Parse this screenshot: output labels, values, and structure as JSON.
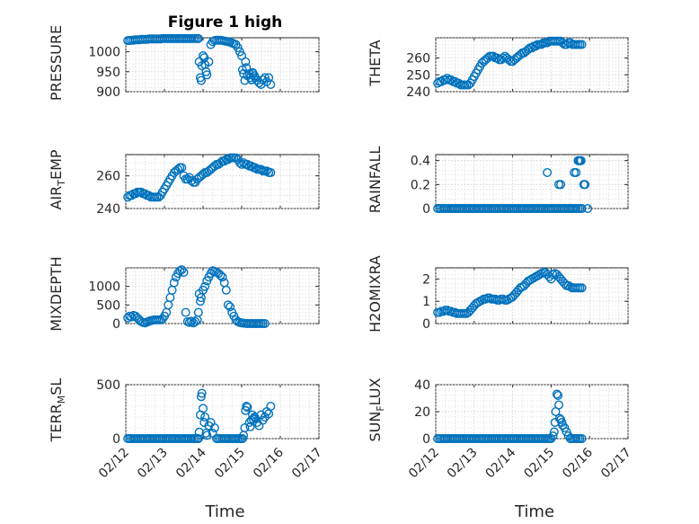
{
  "figure": {
    "title": "Figure 1 high",
    "marker_color": "#0072BD"
  },
  "chart_data": [
    {
      "type": "scatter",
      "id": "pressure",
      "ylabel": "PRESSURE",
      "xlabel": "",
      "xlim": [
        0,
        5
      ],
      "ylim": [
        900,
        1035
      ],
      "yticks": [
        900,
        950,
        1000
      ],
      "grid": true,
      "show_xticklabels": false,
      "title": "Figure 1 high",
      "x": [
        0.05,
        0.1,
        0.15,
        0.2,
        0.25,
        0.3,
        0.35,
        0.4,
        0.45,
        0.5,
        0.55,
        0.6,
        0.65,
        0.7,
        0.75,
        0.8,
        0.85,
        0.9,
        0.95,
        1.0,
        1.05,
        1.1,
        1.15,
        1.2,
        1.25,
        1.3,
        1.35,
        1.4,
        1.45,
        1.5,
        1.55,
        1.6,
        1.65,
        1.7,
        1.75,
        1.8,
        1.85,
        1.88,
        1.9,
        1.93,
        1.95,
        1.97,
        2.0,
        2.03,
        2.05,
        2.08,
        2.1,
        2.15,
        2.2,
        2.25,
        2.3,
        2.35,
        2.4,
        2.45,
        2.5,
        2.55,
        2.6,
        2.65,
        2.7,
        2.75,
        2.8,
        2.85,
        2.9,
        2.95,
        3.0,
        3.02,
        3.05,
        3.08,
        3.1,
        3.12,
        3.15,
        3.2,
        3.22,
        3.25,
        3.28,
        3.3,
        3.33,
        3.35,
        3.4,
        3.45,
        3.5,
        3.55,
        3.6,
        3.65,
        3.7,
        3.75
      ],
      "y": [
        1028,
        1028,
        1029,
        1029,
        1030,
        1030,
        1030,
        1031,
        1031,
        1031,
        1031,
        1032,
        1032,
        1032,
        1032,
        1032,
        1032,
        1032,
        1033,
        1033,
        1033,
        1033,
        1033,
        1033,
        1033,
        1033,
        1033,
        1033,
        1033,
        1033,
        1033,
        1033,
        1033,
        1033,
        1033,
        1033,
        1033,
        1033,
        975,
        935,
        928,
        965,
        990,
        985,
        968,
        950,
        942,
        975,
        1018,
        1025,
        1028,
        1029,
        1029,
        1029,
        1028,
        1027,
        1026,
        1025,
        1024,
        1022,
        1020,
        1018,
        1010,
        1000,
        990,
        955,
        945,
        928,
        975,
        960,
        940,
        945,
        935,
        930,
        948,
        945,
        940,
        935,
        928,
        922,
        918,
        930,
        935,
        925,
        935,
        918
      ]
    },
    {
      "type": "scatter",
      "id": "theta",
      "ylabel": "THETA",
      "xlabel": "",
      "xlim": [
        0,
        5
      ],
      "ylim": [
        240,
        272
      ],
      "yticks": [
        240,
        250,
        260
      ],
      "grid": true,
      "show_xticklabels": false,
      "x": [
        0.05,
        0.1,
        0.15,
        0.2,
        0.25,
        0.3,
        0.35,
        0.4,
        0.45,
        0.5,
        0.55,
        0.6,
        0.65,
        0.7,
        0.75,
        0.8,
        0.85,
        0.9,
        0.95,
        1.0,
        1.05,
        1.1,
        1.15,
        1.2,
        1.25,
        1.3,
        1.35,
        1.4,
        1.45,
        1.5,
        1.55,
        1.6,
        1.65,
        1.7,
        1.75,
        1.8,
        1.85,
        1.9,
        1.95,
        2.0,
        2.05,
        2.1,
        2.15,
        2.2,
        2.25,
        2.3,
        2.35,
        2.4,
        2.45,
        2.5,
        2.55,
        2.6,
        2.65,
        2.7,
        2.75,
        2.8,
        2.85,
        2.9,
        2.95,
        3.0,
        3.05,
        3.1,
        3.15,
        3.2,
        3.25,
        3.3,
        3.35,
        3.4,
        3.45,
        3.5,
        3.55,
        3.6,
        3.65,
        3.7,
        3.75,
        3.8
      ],
      "y": [
        245,
        246,
        246,
        247,
        247,
        248,
        247,
        247,
        246,
        246,
        245,
        245,
        244,
        244,
        244,
        244,
        244,
        245,
        247,
        249,
        251,
        253,
        255,
        257,
        258,
        259,
        260,
        261,
        261,
        261,
        260,
        260,
        259,
        259,
        260,
        261,
        260,
        259,
        258,
        258,
        259,
        260,
        261,
        262,
        263,
        263,
        264,
        265,
        266,
        266,
        267,
        267,
        268,
        268,
        268,
        269,
        269,
        269,
        270,
        270,
        270,
        270,
        270,
        270,
        270,
        269,
        268,
        268,
        269,
        269,
        268,
        268,
        268,
        268,
        268,
        268
      ]
    },
    {
      "type": "scatter",
      "id": "air_temp",
      "ylabel": "AIR_TEMP",
      "xlabel": "",
      "xlim": [
        0,
        5
      ],
      "ylim": [
        240,
        273
      ],
      "yticks": [
        240,
        260
      ],
      "grid": true,
      "show_xticklabels": false,
      "x": [
        0.05,
        0.1,
        0.15,
        0.2,
        0.25,
        0.3,
        0.35,
        0.4,
        0.45,
        0.5,
        0.55,
        0.6,
        0.65,
        0.7,
        0.75,
        0.8,
        0.85,
        0.9,
        0.95,
        1.0,
        1.05,
        1.1,
        1.15,
        1.2,
        1.25,
        1.3,
        1.35,
        1.4,
        1.45,
        1.5,
        1.55,
        1.6,
        1.65,
        1.7,
        1.75,
        1.8,
        1.85,
        1.9,
        1.95,
        2.0,
        2.05,
        2.1,
        2.15,
        2.2,
        2.25,
        2.3,
        2.35,
        2.4,
        2.45,
        2.5,
        2.55,
        2.6,
        2.65,
        2.7,
        2.75,
        2.8,
        2.85,
        2.9,
        2.95,
        3.0,
        3.05,
        3.1,
        3.15,
        3.2,
        3.25,
        3.3,
        3.35,
        3.4,
        3.45,
        3.5,
        3.55,
        3.6,
        3.65,
        3.7,
        3.75
      ],
      "y": [
        247,
        248,
        248,
        249,
        249,
        250,
        250,
        250,
        249,
        249,
        248,
        248,
        247,
        247,
        247,
        247,
        247,
        248,
        250,
        252,
        254,
        256,
        258,
        260,
        262,
        263,
        264,
        265,
        265,
        260,
        258,
        258,
        259,
        257,
        256,
        256,
        258,
        259,
        260,
        261,
        262,
        262,
        263,
        264,
        265,
        266,
        267,
        267,
        268,
        269,
        269,
        270,
        270,
        271,
        271,
        271,
        271,
        270,
        268,
        267,
        268,
        267,
        267,
        266,
        266,
        265,
        265,
        264,
        264,
        264,
        263,
        263,
        263,
        262,
        262
      ]
    },
    {
      "type": "scatter",
      "id": "rainfall",
      "ylabel": "RAINFALL",
      "xlabel": "",
      "xlim": [
        0,
        5
      ],
      "ylim": [
        0,
        0.45
      ],
      "yticks": [
        0,
        0.2,
        0.4
      ],
      "grid": true,
      "show_xticklabels": false,
      "x": [
        0.05,
        0.1,
        0.15,
        0.2,
        0.25,
        0.3,
        0.35,
        0.4,
        0.45,
        0.5,
        0.55,
        0.6,
        0.65,
        0.7,
        0.75,
        0.8,
        0.85,
        0.9,
        0.95,
        1.0,
        1.05,
        1.1,
        1.15,
        1.2,
        1.25,
        1.3,
        1.35,
        1.4,
        1.45,
        1.5,
        1.55,
        1.6,
        1.65,
        1.7,
        1.75,
        1.8,
        1.85,
        1.9,
        1.95,
        2.0,
        2.05,
        2.1,
        2.15,
        2.2,
        2.25,
        2.3,
        2.35,
        2.4,
        2.45,
        2.5,
        2.55,
        2.6,
        2.65,
        2.7,
        2.75,
        2.8,
        2.85,
        2.9,
        2.95,
        3.0,
        3.05,
        3.1,
        3.15,
        3.2,
        3.25,
        3.3,
        3.35,
        3.4,
        3.45,
        3.5,
        3.55,
        3.6,
        3.65,
        3.7,
        3.75,
        3.8,
        2.9,
        3.2,
        3.25,
        3.6,
        3.65,
        3.7,
        3.72,
        3.75,
        3.78,
        3.85,
        3.88,
        3.95
      ],
      "y": [
        0,
        0,
        0,
        0,
        0,
        0,
        0,
        0,
        0,
        0,
        0,
        0,
        0,
        0,
        0,
        0,
        0,
        0,
        0,
        0,
        0,
        0,
        0,
        0,
        0,
        0,
        0,
        0,
        0,
        0,
        0,
        0,
        0,
        0,
        0,
        0,
        0,
        0,
        0,
        0,
        0,
        0,
        0,
        0,
        0,
        0,
        0,
        0,
        0,
        0,
        0,
        0,
        0,
        0,
        0,
        0,
        0,
        0,
        0,
        0,
        0,
        0,
        0,
        0,
        0,
        0,
        0,
        0,
        0,
        0,
        0,
        0,
        0,
        0,
        0,
        0,
        0.3,
        0.2,
        0.2,
        0.3,
        0.3,
        0.4,
        0.4,
        0.4,
        0.4,
        0.2,
        0.2,
        0
      ]
    },
    {
      "type": "scatter",
      "id": "mixdepth",
      "ylabel": "MIXDEPTH",
      "xlabel": "",
      "xlim": [
        0,
        5
      ],
      "ylim": [
        0,
        1500
      ],
      "yticks": [
        0,
        500,
        1000
      ],
      "grid": true,
      "show_xticklabels": false,
      "x": [
        0.05,
        0.1,
        0.15,
        0.2,
        0.25,
        0.3,
        0.35,
        0.4,
        0.45,
        0.5,
        0.55,
        0.6,
        0.65,
        0.7,
        0.75,
        0.8,
        0.85,
        0.9,
        0.95,
        1.0,
        1.05,
        1.1,
        1.15,
        1.2,
        1.25,
        1.3,
        1.35,
        1.4,
        1.45,
        1.5,
        1.55,
        1.6,
        1.65,
        1.7,
        1.75,
        1.8,
        1.85,
        1.88,
        1.9,
        1.93,
        1.95,
        2.0,
        2.05,
        2.1,
        2.15,
        2.2,
        2.25,
        2.3,
        2.35,
        2.4,
        2.45,
        2.5,
        2.55,
        2.6,
        2.65,
        2.7,
        2.75,
        2.8,
        2.85,
        2.9,
        2.95,
        3.0,
        3.05,
        3.1,
        3.15,
        3.2,
        3.25,
        3.3,
        3.35,
        3.4,
        3.45,
        3.5,
        3.55,
        3.6
      ],
      "y": [
        150,
        200,
        180,
        220,
        200,
        150,
        100,
        50,
        30,
        20,
        40,
        60,
        80,
        90,
        100,
        100,
        100,
        100,
        120,
        200,
        300,
        500,
        700,
        900,
        1100,
        1250,
        1350,
        1420,
        1450,
        1380,
        300,
        50,
        30,
        60,
        20,
        50,
        100,
        300,
        800,
        600,
        700,
        900,
        1000,
        1150,
        1250,
        1350,
        1420,
        1400,
        1380,
        1350,
        1300,
        1250,
        1100,
        900,
        500,
        450,
        300,
        200,
        100,
        50,
        30,
        20,
        10,
        5,
        0,
        0,
        0,
        0,
        0,
        0,
        0,
        0,
        0,
        0
      ]
    },
    {
      "type": "scatter",
      "id": "h2omixra",
      "ylabel": "H2OMIXRA",
      "xlabel": "",
      "xlim": [
        0,
        5
      ],
      "ylim": [
        0,
        2.5
      ],
      "yticks": [
        0,
        1,
        2
      ],
      "grid": true,
      "show_xticklabels": false,
      "x": [
        0.05,
        0.1,
        0.15,
        0.2,
        0.25,
        0.3,
        0.35,
        0.4,
        0.45,
        0.5,
        0.55,
        0.6,
        0.65,
        0.7,
        0.75,
        0.8,
        0.85,
        0.9,
        0.95,
        1.0,
        1.05,
        1.1,
        1.15,
        1.2,
        1.25,
        1.3,
        1.35,
        1.4,
        1.45,
        1.5,
        1.55,
        1.6,
        1.65,
        1.7,
        1.75,
        1.8,
        1.85,
        1.9,
        1.95,
        2.0,
        2.05,
        2.1,
        2.15,
        2.2,
        2.25,
        2.3,
        2.35,
        2.4,
        2.45,
        2.5,
        2.55,
        2.6,
        2.65,
        2.7,
        2.75,
        2.8,
        2.85,
        2.9,
        2.95,
        3.0,
        3.05,
        3.1,
        3.15,
        3.2,
        3.25,
        3.3,
        3.35,
        3.4,
        3.45,
        3.5,
        3.55,
        3.6,
        3.65,
        3.7,
        3.75,
        3.8
      ],
      "y": [
        0.5,
        0.5,
        0.55,
        0.55,
        0.6,
        0.6,
        0.55,
        0.55,
        0.5,
        0.5,
        0.45,
        0.45,
        0.45,
        0.45,
        0.45,
        0.45,
        0.5,
        0.6,
        0.7,
        0.8,
        0.9,
        0.95,
        1.0,
        1.05,
        1.1,
        1.1,
        1.15,
        1.15,
        1.1,
        1.1,
        1.1,
        1.05,
        1.05,
        1.1,
        1.1,
        1.05,
        1.05,
        1.1,
        1.15,
        1.2,
        1.3,
        1.4,
        1.5,
        1.6,
        1.65,
        1.7,
        1.8,
        1.9,
        1.95,
        2.0,
        2.05,
        2.1,
        2.15,
        2.2,
        2.25,
        2.3,
        2.3,
        2.2,
        2.1,
        2.0,
        2.2,
        2.25,
        2.2,
        2.1,
        2.0,
        1.9,
        1.8,
        1.7,
        1.7,
        1.65,
        1.6,
        1.6,
        1.6,
        1.6,
        1.6,
        1.6
      ]
    },
    {
      "type": "scatter",
      "id": "terr_msl",
      "ylabel": "TERR_MSL",
      "xlabel": "Time",
      "xlim": [
        0,
        5
      ],
      "ylim": [
        0,
        500
      ],
      "yticks": [
        0,
        500
      ],
      "grid": true,
      "show_xticklabels": true,
      "xticklabels": [
        "02/12",
        "02/13",
        "02/14",
        "02/15",
        "02/16",
        "02/17"
      ],
      "x": [
        0.05,
        0.1,
        0.15,
        0.2,
        0.25,
        0.3,
        0.35,
        0.4,
        0.45,
        0.5,
        0.55,
        0.6,
        0.65,
        0.7,
        0.75,
        0.8,
        0.85,
        0.9,
        0.95,
        1.0,
        1.05,
        1.1,
        1.15,
        1.2,
        1.25,
        1.3,
        1.35,
        1.4,
        1.45,
        1.5,
        1.55,
        1.6,
        1.65,
        1.7,
        1.75,
        1.8,
        1.85,
        1.88,
        1.9,
        1.93,
        1.95,
        1.97,
        2.0,
        2.03,
        2.05,
        2.08,
        2.1,
        2.15,
        2.2,
        2.25,
        2.3,
        2.35,
        2.4,
        2.45,
        2.5,
        2.55,
        2.6,
        2.65,
        2.7,
        2.75,
        2.8,
        2.85,
        2.9,
        2.95,
        3.0,
        3.02,
        3.05,
        3.08,
        3.1,
        3.12,
        3.15,
        3.2,
        3.22,
        3.25,
        3.28,
        3.3,
        3.33,
        3.35,
        3.4,
        3.45,
        3.5,
        3.55,
        3.6,
        3.65,
        3.7,
        3.75
      ],
      "y": [
        0,
        0,
        0,
        0,
        0,
        0,
        0,
        0,
        0,
        0,
        0,
        0,
        0,
        0,
        0,
        0,
        0,
        0,
        0,
        0,
        0,
        0,
        0,
        0,
        0,
        0,
        0,
        0,
        0,
        0,
        0,
        0,
        0,
        0,
        0,
        0,
        0,
        0,
        60,
        220,
        390,
        420,
        280,
        150,
        200,
        50,
        30,
        120,
        150,
        50,
        100,
        0,
        0,
        0,
        0,
        0,
        0,
        0,
        0,
        0,
        0,
        0,
        0,
        0,
        0,
        0,
        30,
        100,
        260,
        300,
        290,
        150,
        110,
        170,
        220,
        180,
        200,
        190,
        150,
        120,
        220,
        170,
        200,
        250,
        230,
        300
      ]
    },
    {
      "type": "scatter",
      "id": "sun_flux",
      "ylabel": "SUN_FLUX",
      "xlabel": "Time",
      "xlim": [
        0,
        5
      ],
      "ylim": [
        0,
        40
      ],
      "yticks": [
        0,
        20,
        40
      ],
      "grid": true,
      "show_xticklabels": true,
      "xticklabels": [
        "02/12",
        "02/13",
        "02/14",
        "02/15",
        "02/16",
        "02/17"
      ],
      "x": [
        0.05,
        0.1,
        0.15,
        0.2,
        0.25,
        0.3,
        0.35,
        0.4,
        0.45,
        0.5,
        0.55,
        0.6,
        0.65,
        0.7,
        0.75,
        0.8,
        0.85,
        0.9,
        0.95,
        1.0,
        1.05,
        1.1,
        1.15,
        1.2,
        1.25,
        1.3,
        1.35,
        1.4,
        1.45,
        1.5,
        1.55,
        1.6,
        1.65,
        1.7,
        1.75,
        1.8,
        1.85,
        1.9,
        1.95,
        2.0,
        2.05,
        2.1,
        2.15,
        2.2,
        2.25,
        2.3,
        2.35,
        2.4,
        2.45,
        2.5,
        2.55,
        2.6,
        2.65,
        2.7,
        2.75,
        2.8,
        2.85,
        2.9,
        2.95,
        3.0,
        3.05,
        3.08,
        3.1,
        3.12,
        3.15,
        3.18,
        3.2,
        3.22,
        3.25,
        3.28,
        3.3,
        3.35,
        3.4,
        3.45,
        3.5,
        3.55,
        3.6,
        3.65,
        3.7,
        3.75,
        3.8
      ],
      "y": [
        0,
        0,
        0,
        0,
        0,
        0,
        0,
        0,
        0,
        0,
        0,
        0,
        0,
        0,
        0,
        0,
        0,
        0,
        0,
        0,
        0,
        0,
        0,
        0,
        0,
        0,
        0,
        0,
        0,
        0,
        0,
        0,
        0,
        0,
        0,
        0,
        0,
        0,
        0,
        0,
        0,
        0,
        0,
        0,
        0,
        0,
        0,
        0,
        0,
        0,
        0,
        0,
        0,
        0,
        0,
        0,
        0,
        0,
        0,
        0,
        2,
        5,
        12,
        20,
        33,
        32,
        25,
        15,
        14,
        12,
        10,
        8,
        5,
        2,
        0,
        0,
        0,
        0,
        0,
        0,
        0
      ]
    }
  ]
}
